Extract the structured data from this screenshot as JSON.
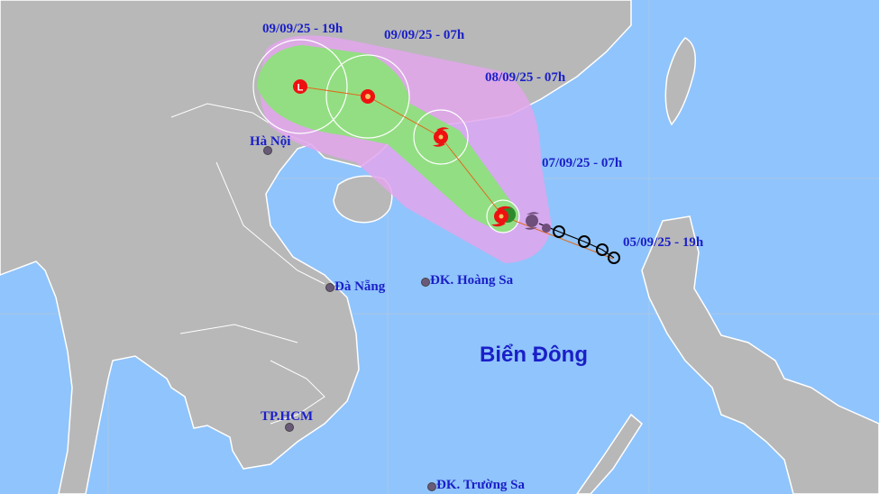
{
  "map": {
    "colors": {
      "sea": "#90c4fc",
      "land": "#b8b8b8",
      "label": "#1a1fc8",
      "cone_outer": "#e0a8e6",
      "cone_inner": "#8fe07a",
      "storm_symbol": "#ee1111"
    },
    "sea_label": "Biển Đông",
    "cities": [
      {
        "name": "Hà Nội"
      },
      {
        "name": "Đà Nẵng"
      },
      {
        "name": "ĐK. Hoàng Sa"
      },
      {
        "name": "TP.HCM"
      },
      {
        "name": "ĐK. Trường Sa"
      }
    ],
    "track_labels": [
      {
        "time": "09/09/25 - 19h",
        "symbol": "low-pressure-L-icon"
      },
      {
        "time": "09/09/25 - 07h",
        "symbol": "tropical-depression-icon"
      },
      {
        "time": "08/09/25 - 07h",
        "symbol": "storm-icon"
      },
      {
        "time": "07/09/25 - 07h",
        "symbol": "storm-icon"
      },
      {
        "time": "05/09/25 - 19h",
        "symbol": "past-position-circle-icon"
      }
    ],
    "low_symbol_text": "L"
  }
}
